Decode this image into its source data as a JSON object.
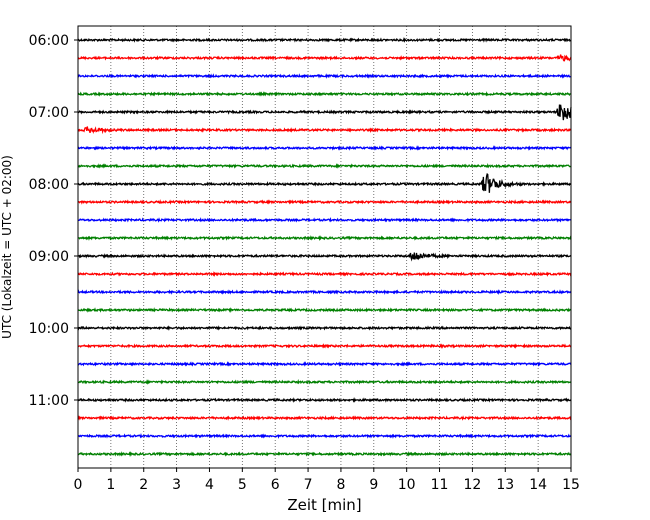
{
  "chart_data": {
    "type": "line",
    "title": "",
    "xlabel": "Zeit  [min]",
    "ylabel": "UTC (Lokalzeit = UTC + 02:00)",
    "xlim": [
      0,
      15
    ],
    "x_ticks": [
      "0",
      "1",
      "2",
      "3",
      "4",
      "5",
      "6",
      "7",
      "8",
      "9",
      "10",
      "11",
      "12",
      "13",
      "14",
      "15"
    ],
    "y_ticks": [
      "06:00",
      "07:00",
      "08:00",
      "09:00",
      "10:00",
      "11:00"
    ],
    "grid": "vertical dotted lines at each minute",
    "trace_colors": [
      "#000000",
      "#ff0000",
      "#0000ff",
      "#008000"
    ],
    "traces_start": "06:00",
    "trace_interval_min": 15,
    "trace_count": 24,
    "events": [
      {
        "trace_start": "06:15",
        "minute": 14.6,
        "amplitude": "small"
      },
      {
        "trace_start": "07:00",
        "minute": 14.6,
        "amplitude": "large"
      },
      {
        "trace_start": "07:15",
        "minute": 0.2,
        "amplitude": "small"
      },
      {
        "trace_start": "08:00",
        "minute": 12.3,
        "amplitude": "large"
      },
      {
        "trace_start": "09:00",
        "minute": 10.1,
        "amplitude": "medium"
      }
    ]
  }
}
